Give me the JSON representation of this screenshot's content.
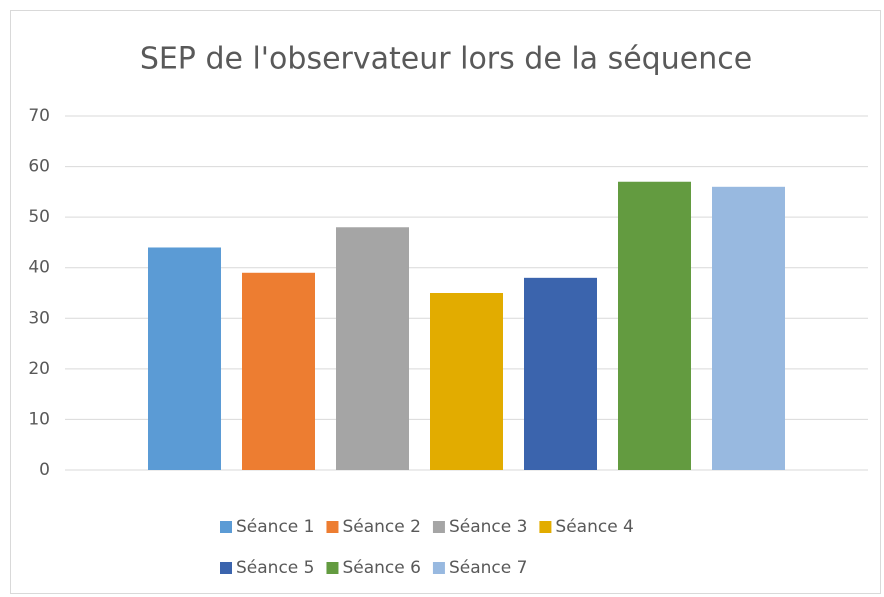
{
  "chart_data": {
    "type": "bar",
    "title": "SEP de l'observateur lors de la séquence",
    "series": [
      {
        "name": "Séance 1",
        "color": "#5b9bd5",
        "values": [
          44
        ]
      },
      {
        "name": "Séance 2",
        "color": "#ed7d31",
        "values": [
          39
        ]
      },
      {
        "name": "Séance 3",
        "color": "#a5a5a5",
        "values": [
          48
        ]
      },
      {
        "name": "Séance 4",
        "color": "#e2ac00",
        "values": [
          35
        ]
      },
      {
        "name": "Séance 5",
        "color": "#3b64ad",
        "values": [
          38
        ]
      },
      {
        "name": "Séance 6",
        "color": "#639b40",
        "values": [
          57
        ]
      },
      {
        "name": "Séance 7",
        "color": "#98b9e0",
        "values": [
          56
        ]
      }
    ],
    "ylim": [
      0,
      70
    ],
    "yticks": [
      0,
      10,
      20,
      30,
      40,
      50,
      60,
      70
    ],
    "grid": true,
    "legend": "bottom"
  }
}
